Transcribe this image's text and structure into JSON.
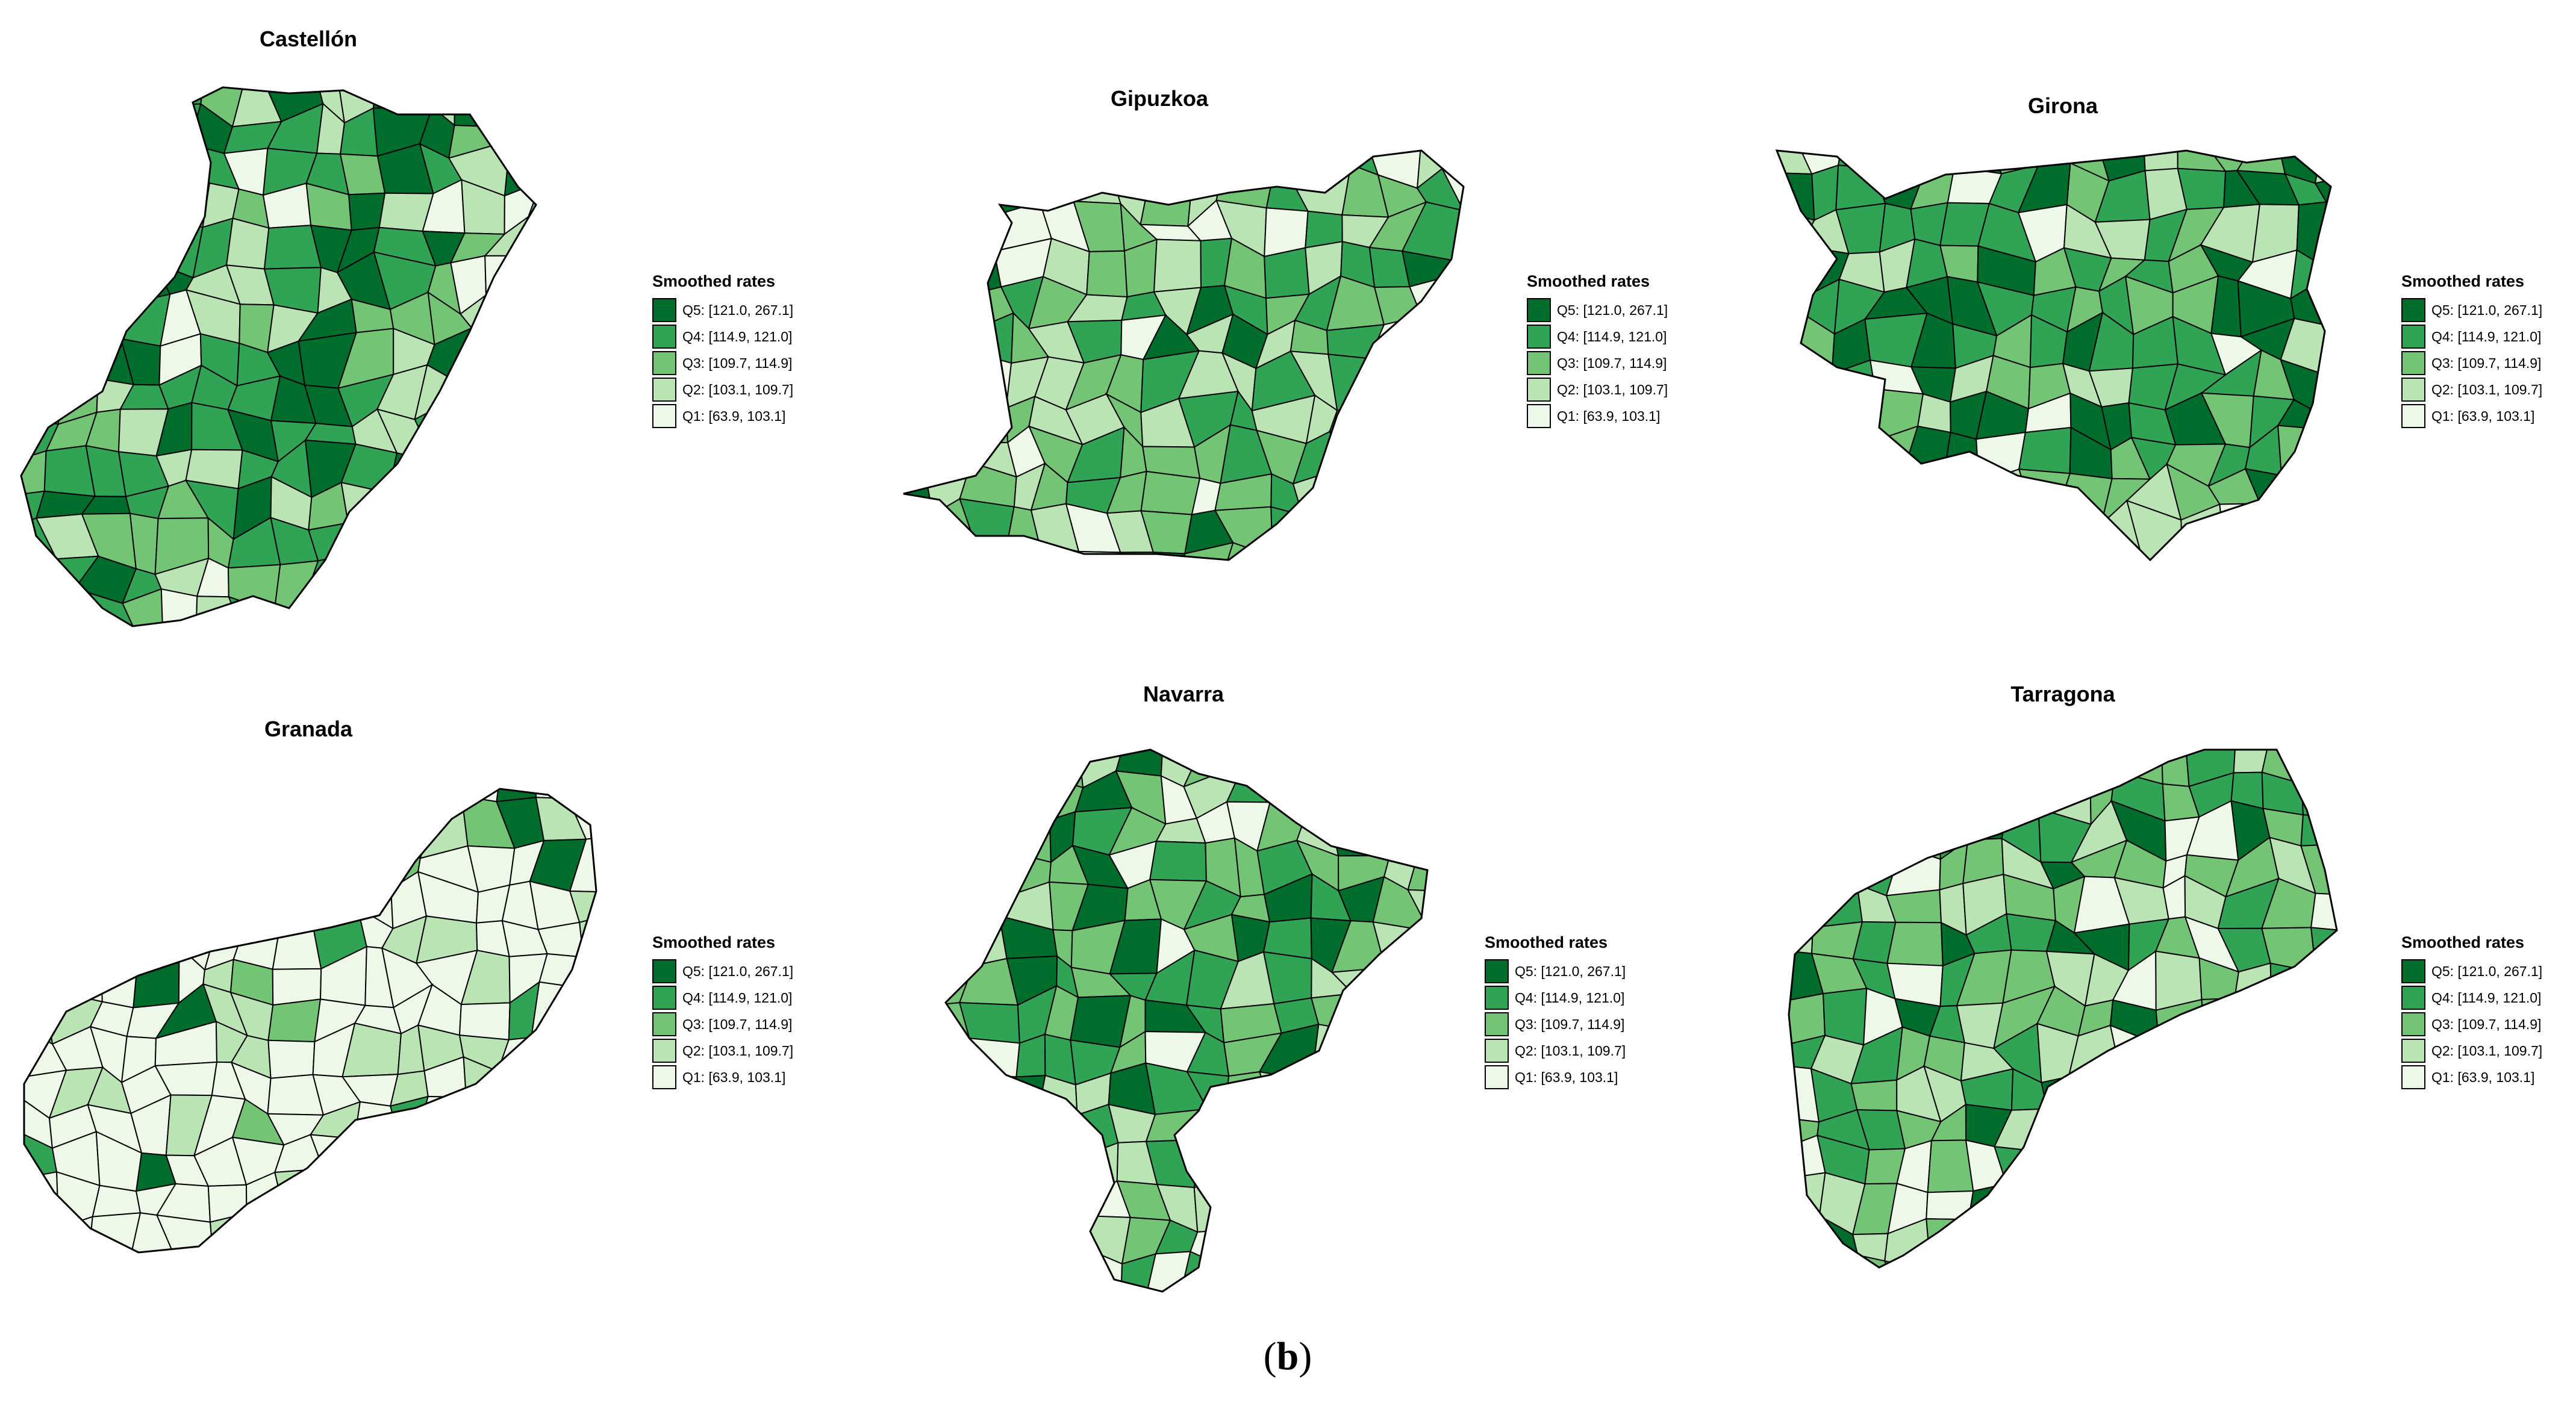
{
  "figure_label": {
    "open": "(",
    "letter": "b",
    "close": ")"
  },
  "legend": {
    "title": "Smoothed rates",
    "classes": [
      {
        "label": "Q5: [121.0, 267.1]",
        "color": "#006d2c"
      },
      {
        "label": "Q4: [114.9, 121.0]",
        "color": "#31a354"
      },
      {
        "label": "Q3: [109.7, 114.9]",
        "color": "#74c476"
      },
      {
        "label": "Q2: [103.1, 109.7]",
        "color": "#bae4b3"
      },
      {
        "label": "Q1: [63.9, 103.1]",
        "color": "#edf8e9"
      }
    ]
  },
  "maps": [
    {
      "title": "Castellón"
    },
    {
      "title": "Gipuzkoa"
    },
    {
      "title": "Girona"
    },
    {
      "title": "Granada"
    },
    {
      "title": "Navarra"
    },
    {
      "title": "Tarragona"
    }
  ]
}
